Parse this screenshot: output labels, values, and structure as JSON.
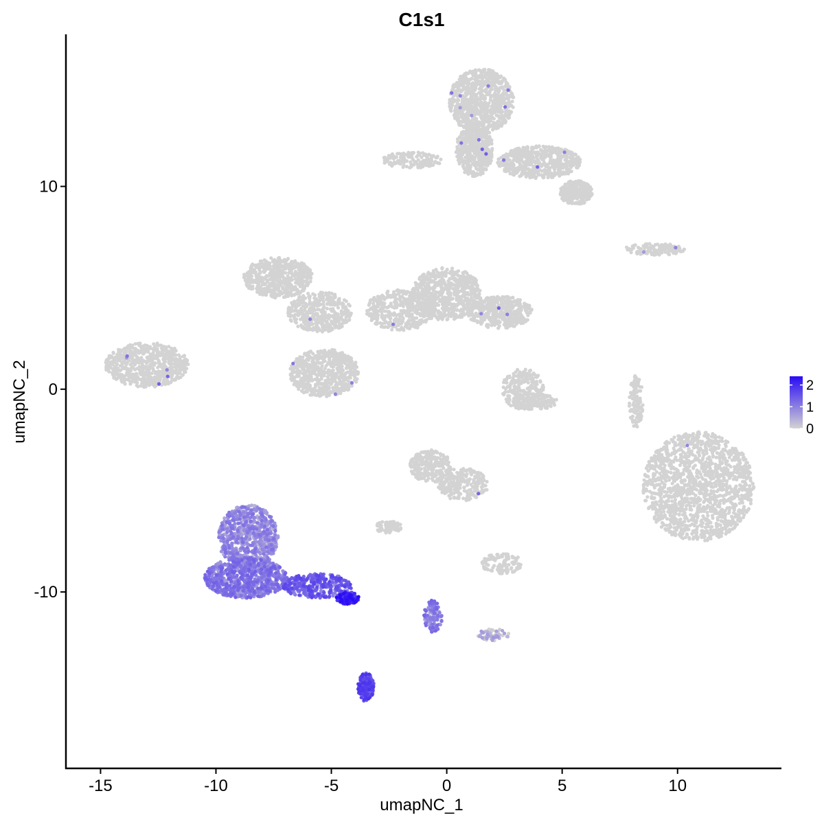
{
  "chart_data": {
    "type": "scatter",
    "title": "C1s1",
    "xlabel": "umapNC_1",
    "ylabel": "umapNC_2",
    "xlim": [
      -16.5,
      14.5
    ],
    "ylim": [
      -18.7,
      17.5
    ],
    "x_ticks": [
      -15,
      -10,
      -5,
      0,
      5,
      10
    ],
    "y_ticks": [
      -10,
      0,
      10
    ],
    "x_tick_labels": [
      "-15",
      "-10",
      "-5",
      "0",
      "5",
      "10"
    ],
    "y_tick_labels": [
      "-10",
      "0",
      "10"
    ],
    "grid": false,
    "legend": {
      "placement": "right",
      "type": "colorbar",
      "min": 0,
      "max": 2.4,
      "ticks": [
        0,
        1,
        2
      ],
      "tick_labels": [
        "0",
        "1",
        "2"
      ],
      "low_color": "#d3d3d3",
      "high_color": "#2a0cf5"
    },
    "colors": {
      "low": "#d3d3d3",
      "high": "#2a0cf5"
    },
    "clusters": [
      {
        "x": 1.5,
        "y": 14.2,
        "rx": 1.4,
        "ry": 1.6,
        "n": 900,
        "expr": 0
      },
      {
        "x": 1.2,
        "y": 11.8,
        "rx": 0.8,
        "ry": 1.3,
        "n": 500,
        "expr": 0
      },
      {
        "x": 4.0,
        "y": 11.2,
        "rx": 1.8,
        "ry": 0.8,
        "n": 600,
        "expr": 0
      },
      {
        "x": 5.6,
        "y": 9.7,
        "rx": 0.7,
        "ry": 0.6,
        "n": 260,
        "expr": 0
      },
      {
        "x": -1.5,
        "y": 11.3,
        "rx": 1.3,
        "ry": 0.4,
        "n": 160,
        "expr": 0
      },
      {
        "x": -7.3,
        "y": 5.5,
        "rx": 1.5,
        "ry": 1.0,
        "n": 560,
        "expr": 0
      },
      {
        "x": -5.5,
        "y": 3.8,
        "rx": 1.4,
        "ry": 1.0,
        "n": 420,
        "expr": 0
      },
      {
        "x": -5.3,
        "y": 0.8,
        "rx": 1.5,
        "ry": 1.2,
        "n": 650,
        "expr": 0
      },
      {
        "x": -2.0,
        "y": 3.9,
        "rx": 1.5,
        "ry": 1.0,
        "n": 420,
        "expr": 0
      },
      {
        "x": 0.0,
        "y": 4.7,
        "rx": 1.5,
        "ry": 1.3,
        "n": 680,
        "expr": 0
      },
      {
        "x": 2.3,
        "y": 3.8,
        "rx": 1.4,
        "ry": 0.8,
        "n": 420,
        "expr": 0
      },
      {
        "x": -13.0,
        "y": 1.2,
        "rx": 1.8,
        "ry": 1.1,
        "n": 650,
        "expr": 0
      },
      {
        "x": 3.3,
        "y": 0.0,
        "rx": 0.9,
        "ry": 1.0,
        "n": 220,
        "expr": 0
      },
      {
        "x": 3.8,
        "y": -0.6,
        "rx": 1.0,
        "ry": 0.4,
        "n": 140,
        "expr": 0
      },
      {
        "x": 8.2,
        "y": -0.6,
        "rx": 0.3,
        "ry": 1.3,
        "n": 110,
        "expr": 0
      },
      {
        "x": 9.0,
        "y": 6.9,
        "rx": 1.3,
        "ry": 0.3,
        "n": 130,
        "expr": 0
      },
      {
        "x": 10.9,
        "y": -4.8,
        "rx": 2.4,
        "ry": 2.7,
        "n": 1500,
        "expr": 0
      },
      {
        "x": -0.7,
        "y": -3.8,
        "rx": 0.9,
        "ry": 0.8,
        "n": 260,
        "expr": 0
      },
      {
        "x": 0.7,
        "y": -4.7,
        "rx": 1.1,
        "ry": 0.8,
        "n": 240,
        "expr": 0
      },
      {
        "x": -2.5,
        "y": -6.8,
        "rx": 0.6,
        "ry": 0.3,
        "n": 80,
        "expr": 0
      },
      {
        "x": 2.4,
        "y": -8.6,
        "rx": 0.9,
        "ry": 0.5,
        "n": 110,
        "expr": 0
      },
      {
        "x": 2.0,
        "y": -12.1,
        "rx": 0.7,
        "ry": 0.3,
        "n": 60,
        "expr": 0.3
      },
      {
        "x": -8.6,
        "y": -7.3,
        "rx": 1.3,
        "ry": 1.6,
        "n": 800,
        "expr": 0.75
      },
      {
        "x": -8.7,
        "y": -9.3,
        "rx": 1.8,
        "ry": 1.0,
        "n": 900,
        "expr": 0.95
      },
      {
        "x": -5.6,
        "y": -9.7,
        "rx": 1.5,
        "ry": 0.6,
        "n": 340,
        "expr": 1.3
      },
      {
        "x": -4.3,
        "y": -10.3,
        "rx": 0.5,
        "ry": 0.3,
        "n": 120,
        "expr": 2.0
      },
      {
        "x": -3.5,
        "y": -14.7,
        "rx": 0.35,
        "ry": 0.7,
        "n": 200,
        "expr": 1.5
      },
      {
        "x": -0.6,
        "y": -11.2,
        "rx": 0.4,
        "ry": 0.8,
        "n": 120,
        "expr": 0.9
      }
    ]
  }
}
